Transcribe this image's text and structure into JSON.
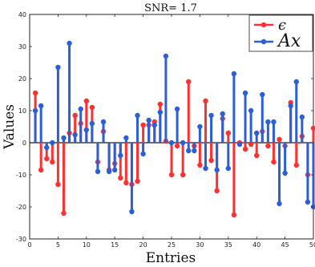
{
  "chart_data": {
    "type": "stem",
    "title": "SNR= 1.7",
    "xlabel": "Entries",
    "ylabel": "Values",
    "xlim": [
      0,
      50
    ],
    "ylim": [
      -30,
      40
    ],
    "xticks": [
      0,
      5,
      10,
      15,
      20,
      25,
      30,
      35,
      40,
      45,
      50
    ],
    "yticks": [
      -30,
      -20,
      -10,
      0,
      10,
      20,
      30,
      40
    ],
    "grid": false,
    "legend_position": "top-right",
    "series": [
      {
        "name": "ϵ",
        "color": "#ff3030",
        "x": [
          1,
          2,
          3,
          4,
          5,
          6,
          7,
          8,
          9,
          10,
          11,
          12,
          13,
          14,
          15,
          16,
          17,
          18,
          19,
          20,
          21,
          22,
          23,
          24,
          25,
          26,
          27,
          28,
          29,
          30,
          31,
          32,
          33,
          34,
          35,
          36,
          37,
          38,
          39,
          40,
          41,
          42,
          43,
          44,
          45,
          46,
          47,
          48,
          49,
          50
        ],
        "values": [
          15.5,
          -8.5,
          -5,
          -6,
          -13,
          -22,
          3,
          8.5,
          6,
          13,
          11,
          -6,
          3.5,
          -8.5,
          -6.5,
          -11,
          -12.5,
          -13,
          -12,
          5.5,
          5.5,
          6.5,
          12,
          0.5,
          -10,
          -1,
          -10,
          19,
          -1,
          -7,
          13,
          -5.5,
          -15,
          7.5,
          3,
          -22.5,
          0,
          -2,
          -0.5,
          -4,
          3.5,
          -1,
          -6,
          1,
          -1,
          12.5,
          -7,
          2,
          -10,
          4.5
        ]
      },
      {
        "name": "Ax",
        "color": "#2a5fd8",
        "x": [
          1,
          2,
          3,
          4,
          5,
          6,
          7,
          8,
          9,
          10,
          11,
          12,
          13,
          14,
          15,
          16,
          17,
          18,
          19,
          20,
          21,
          22,
          23,
          24,
          25,
          26,
          27,
          28,
          29,
          30,
          31,
          32,
          33,
          34,
          35,
          36,
          37,
          38,
          39,
          40,
          41,
          42,
          43,
          44,
          45,
          46,
          47,
          48,
          49,
          50
        ],
        "values": [
          10,
          11.5,
          -1.5,
          0,
          23.5,
          1.5,
          31,
          2.5,
          10.5,
          4,
          6,
          -9,
          6.5,
          -9,
          -8.5,
          -4,
          1.5,
          -21.5,
          8.5,
          -3.5,
          7,
          5.5,
          9.5,
          27,
          0,
          10.5,
          0,
          -2.5,
          -2.5,
          5,
          -8,
          8.5,
          -8.5,
          9,
          -8,
          21.5,
          -0.5,
          15.5,
          10,
          3,
          15,
          6.5,
          6.5,
          -19,
          -9.5,
          11.5,
          19,
          8,
          -18.5,
          -20
        ]
      }
    ]
  }
}
